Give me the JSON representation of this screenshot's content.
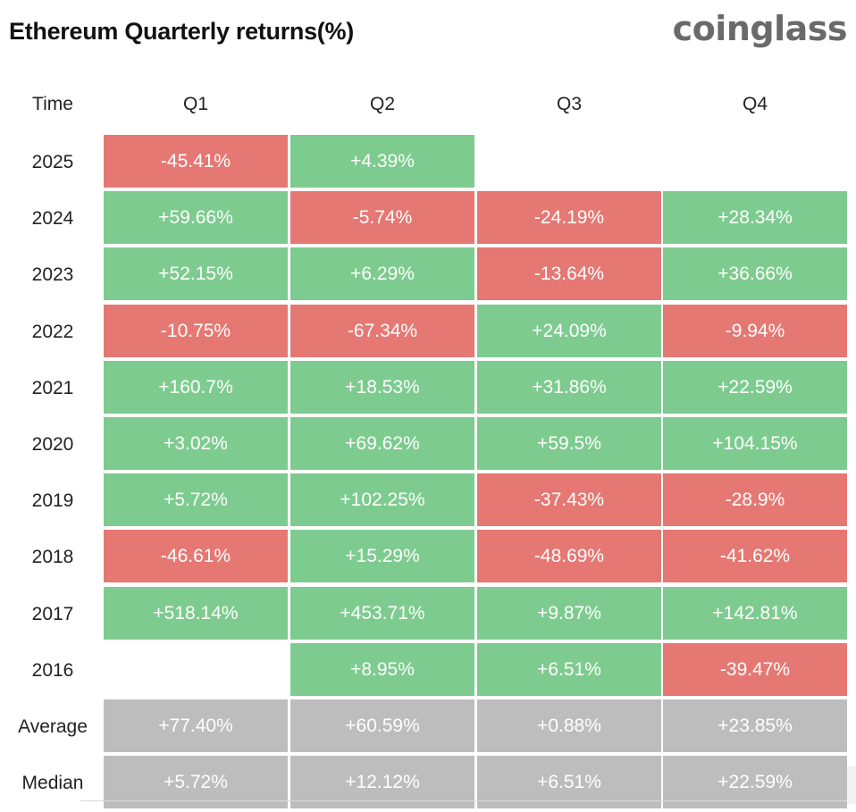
{
  "header": {
    "title": "Ethereum Quarterly returns(%)",
    "logo": "coinglass"
  },
  "chart_data": {
    "type": "table",
    "title": "Ethereum Quarterly returns(%)",
    "column_header": "Time",
    "columns": [
      "Q1",
      "Q2",
      "Q3",
      "Q4"
    ],
    "rows": [
      {
        "label": "2025",
        "values": [
          "-45.41%",
          "+4.39%",
          "",
          ""
        ],
        "signs": [
          "neg",
          "pos",
          "empty",
          "empty"
        ]
      },
      {
        "label": "2024",
        "values": [
          "+59.66%",
          "-5.74%",
          "-24.19%",
          "+28.34%"
        ],
        "signs": [
          "pos",
          "neg",
          "neg",
          "pos"
        ]
      },
      {
        "label": "2023",
        "values": [
          "+52.15%",
          "+6.29%",
          "-13.64%",
          "+36.66%"
        ],
        "signs": [
          "pos",
          "pos",
          "neg",
          "pos"
        ]
      },
      {
        "label": "2022",
        "values": [
          "-10.75%",
          "-67.34%",
          "+24.09%",
          "-9.94%"
        ],
        "signs": [
          "neg",
          "neg",
          "pos",
          "neg"
        ]
      },
      {
        "label": "2021",
        "values": [
          "+160.7%",
          "+18.53%",
          "+31.86%",
          "+22.59%"
        ],
        "signs": [
          "pos",
          "pos",
          "pos",
          "pos"
        ]
      },
      {
        "label": "2020",
        "values": [
          "+3.02%",
          "+69.62%",
          "+59.5%",
          "+104.15%"
        ],
        "signs": [
          "pos",
          "pos",
          "pos",
          "pos"
        ]
      },
      {
        "label": "2019",
        "values": [
          "+5.72%",
          "+102.25%",
          "-37.43%",
          "-28.9%"
        ],
        "signs": [
          "pos",
          "pos",
          "neg",
          "neg"
        ]
      },
      {
        "label": "2018",
        "values": [
          "-46.61%",
          "+15.29%",
          "-48.69%",
          "-41.62%"
        ],
        "signs": [
          "neg",
          "pos",
          "neg",
          "neg"
        ]
      },
      {
        "label": "2017",
        "values": [
          "+518.14%",
          "+453.71%",
          "+9.87%",
          "+142.81%"
        ],
        "signs": [
          "pos",
          "pos",
          "pos",
          "pos"
        ]
      },
      {
        "label": "2016",
        "values": [
          "",
          "+8.95%",
          "+6.51%",
          "-39.47%"
        ],
        "signs": [
          "empty",
          "pos",
          "pos",
          "neg"
        ]
      },
      {
        "label": "Average",
        "values": [
          "+77.40%",
          "+60.59%",
          "+0.88%",
          "+23.85%"
        ],
        "signs": [
          "stat",
          "stat",
          "stat",
          "stat"
        ]
      },
      {
        "label": "Median",
        "values": [
          "+5.72%",
          "+12.12%",
          "+6.51%",
          "+22.59%"
        ],
        "signs": [
          "stat",
          "stat",
          "stat",
          "stat"
        ]
      }
    ],
    "colors": {
      "positive": "#7ecb8f",
      "negative": "#e57873",
      "statistic": "#bdbdbd"
    }
  }
}
